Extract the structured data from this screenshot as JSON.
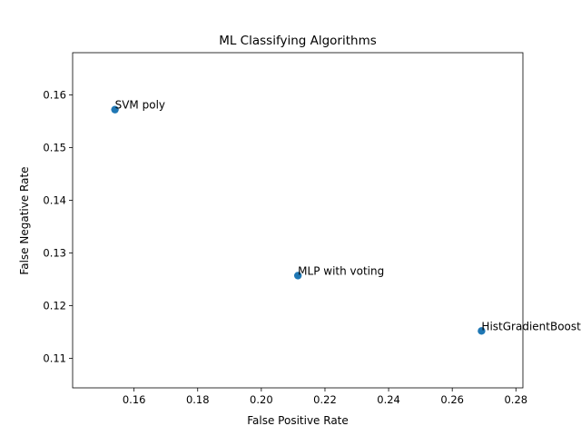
{
  "chart_data": {
    "type": "scatter",
    "title": "ML Classifying Algorithms",
    "xlabel": "False Positive Rate",
    "ylabel": "False Negative Rate",
    "xlim": [
      0.1407,
      0.2822
    ],
    "ylim": [
      0.1044,
      0.168
    ],
    "xticks": [
      {
        "value": 0.16,
        "label": "0.16"
      },
      {
        "value": 0.18,
        "label": "0.18"
      },
      {
        "value": 0.2,
        "label": "0.20"
      },
      {
        "value": 0.22,
        "label": "0.22"
      },
      {
        "value": 0.24,
        "label": "0.24"
      },
      {
        "value": 0.26,
        "label": "0.26"
      },
      {
        "value": 0.28,
        "label": "0.28"
      }
    ],
    "yticks": [
      {
        "value": 0.11,
        "label": "0.11"
      },
      {
        "value": 0.12,
        "label": "0.12"
      },
      {
        "value": 0.13,
        "label": "0.13"
      },
      {
        "value": 0.14,
        "label": "0.14"
      },
      {
        "value": 0.15,
        "label": "0.15"
      },
      {
        "value": 0.16,
        "label": "0.16"
      }
    ],
    "grid": false,
    "marker_color": "#1f77b4",
    "points": [
      {
        "label": "SVM poly",
        "x": 0.154,
        "y": 0.1572
      },
      {
        "label": "MLP with voting",
        "x": 0.2115,
        "y": 0.1257
      },
      {
        "label": "HistGradientBoosting",
        "x": 0.2692,
        "y": 0.1152
      }
    ]
  }
}
